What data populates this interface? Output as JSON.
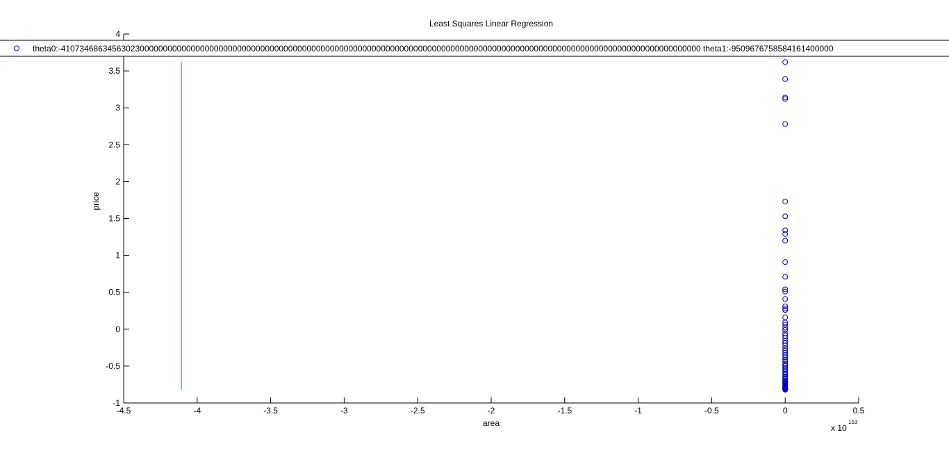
{
  "chart_data": {
    "type": "scatter",
    "title": "Least Squares Linear Regression",
    "xlabel": "area",
    "ylabel": "price",
    "x_exponent_base": "x 10",
    "x_exponent_power": "153",
    "xlim": [
      -4.5,
      0.5
    ],
    "ylim": [
      -1,
      4
    ],
    "x_ticks": [
      -4.5,
      -4,
      -3.5,
      -3,
      -2.5,
      -2,
      -1.5,
      -1,
      -0.5,
      0,
      0.5
    ],
    "x_tick_labels": [
      "-4.5",
      "-4",
      "-3.5",
      "-3",
      "-2.5",
      "-2",
      "-1.5",
      "-1",
      "-0.5",
      "0",
      "0.5"
    ],
    "y_ticks": [
      -1,
      -0.5,
      0,
      0.5,
      1,
      1.5,
      2,
      2.5,
      3,
      3.5,
      4
    ],
    "y_tick_labels": [
      "-1",
      "-0.5",
      "0",
      "0.5",
      "1",
      "1.5",
      "2",
      "2.5",
      "3",
      "3.5",
      "4"
    ],
    "grid": false,
    "legend_placement": "top",
    "colors": {
      "points": "#0000cc",
      "fit_line": "#00dd00",
      "axes": "#000000",
      "background": "#ffffff"
    },
    "series": [
      {
        "name": "theta0:-410734686345630230000000000000000000000000000000000000000000000000000000000000000000000000000000000000000000000000000000000000000000000000 theta1:-9509676758584161400000",
        "type": "scatter",
        "marker": "circle",
        "x": [
          0,
          0,
          0,
          0,
          0,
          0,
          0,
          0,
          0,
          0,
          0,
          0,
          0,
          0,
          0,
          0,
          0,
          0,
          0,
          0,
          0,
          0,
          0,
          0,
          0,
          0,
          0,
          0,
          0,
          0,
          0,
          0,
          0,
          0,
          0,
          0,
          0,
          0,
          0,
          0,
          0,
          0,
          0,
          0,
          0,
          0,
          0,
          0,
          0,
          0,
          0,
          0,
          0,
          0,
          0,
          0,
          0,
          0,
          0,
          0,
          0,
          0,
          0,
          0,
          0,
          0,
          0
        ],
        "y": [
          3.62,
          3.39,
          3.14,
          3.12,
          2.78,
          1.73,
          1.53,
          1.34,
          1.29,
          1.2,
          0.91,
          0.71,
          0.54,
          0.51,
          0.41,
          0.31,
          0.28,
          0.26,
          0.16,
          0.09,
          0.06,
          0.02,
          -0.01,
          -0.06,
          -0.09,
          -0.12,
          -0.16,
          -0.19,
          -0.22,
          -0.26,
          -0.29,
          -0.32,
          -0.35,
          -0.38,
          -0.41,
          -0.43,
          -0.46,
          -0.48,
          -0.5,
          -0.52,
          -0.54,
          -0.56,
          -0.58,
          -0.6,
          -0.62,
          -0.64,
          -0.65,
          -0.67,
          -0.68,
          -0.7,
          -0.71,
          -0.72,
          -0.73,
          -0.74,
          -0.75,
          -0.76,
          -0.77,
          -0.77,
          -0.78,
          -0.79,
          -0.79,
          -0.8,
          -0.8,
          -0.8,
          -0.81,
          -0.81,
          -0.82
        ]
      },
      {
        "type": "line",
        "x": [
          -4.107,
          -4.107
        ],
        "y": [
          -0.82,
          3.62
        ]
      }
    ]
  }
}
